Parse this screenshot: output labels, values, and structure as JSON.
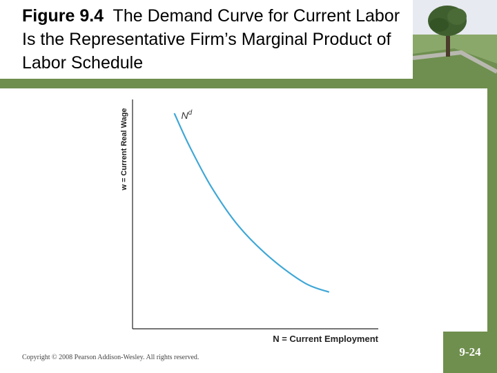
{
  "slide": {
    "title_bold": "Figure 9.4",
    "title_rest": "The Demand Curve for Current Labor Is the Representative Firm’s Marginal Product of Labor Schedule",
    "copyright": "Copyright © 2008 Pearson Addison-Wesley. All rights reserved.",
    "page_number": "9-24"
  },
  "colors": {
    "accent_green": "#6f8f4e",
    "curve": "#3fa7d6"
  },
  "chart_data": {
    "type": "line",
    "title": "",
    "xlabel": "N = Current Employment",
    "ylabel": "w = Current Real Wage",
    "series": [
      {
        "name": "N",
        "name_sup": "d",
        "description": "labor demand curve",
        "x": [
          0.17,
          0.23,
          0.32,
          0.43,
          0.56,
          0.7,
          0.8
        ],
        "y": [
          0.94,
          0.8,
          0.62,
          0.45,
          0.31,
          0.2,
          0.16
        ]
      }
    ],
    "xlim": [
      0,
      1
    ],
    "ylim": [
      0,
      1
    ],
    "grid": false,
    "axis_ticks": false
  }
}
